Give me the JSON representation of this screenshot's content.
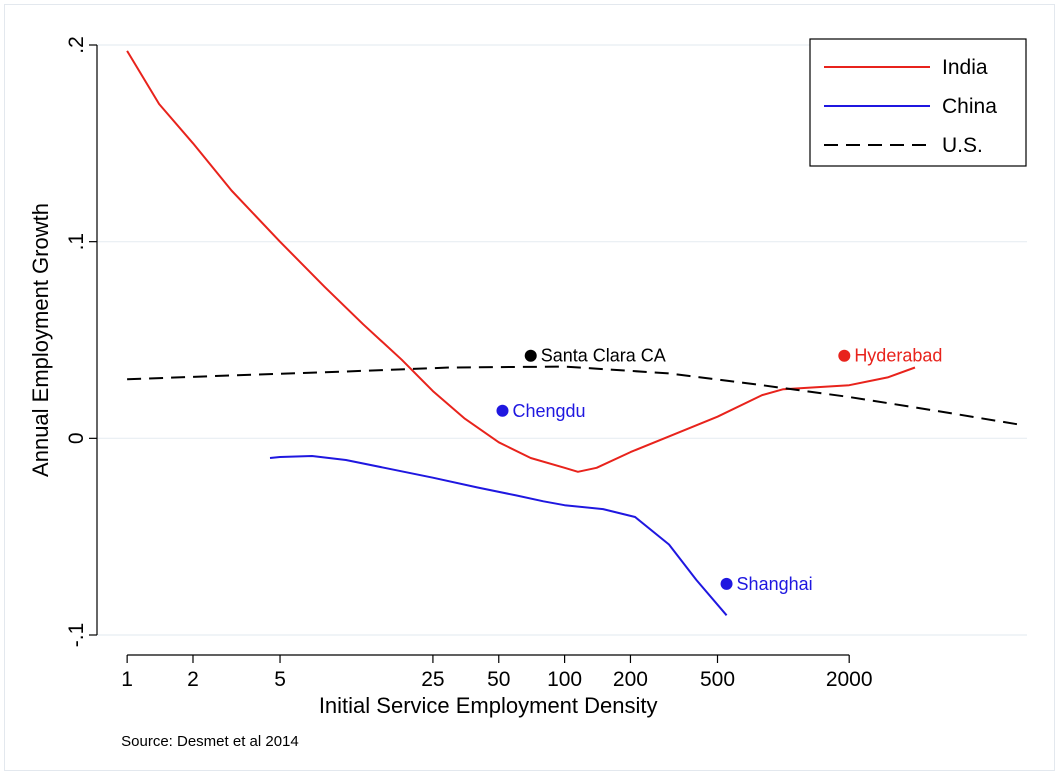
{
  "chart_data": {
    "type": "line",
    "title": "",
    "xlabel": "Initial Service Employment Density",
    "ylabel": "Annual Employment Growth",
    "x_scale": "log",
    "xlim": [
      0.88,
      13000
    ],
    "ylim": [
      -0.1,
      0.2
    ],
    "x_ticks": [
      {
        "value": 1,
        "label": "1"
      },
      {
        "value": 2,
        "label": "2"
      },
      {
        "value": 5,
        "label": "5"
      },
      {
        "value": 25,
        "label": "25"
      },
      {
        "value": 50,
        "label": "50"
      },
      {
        "value": 100,
        "label": "100"
      },
      {
        "value": 200,
        "label": "200"
      },
      {
        "value": 500,
        "label": "500"
      },
      {
        "value": 2000,
        "label": "2000"
      }
    ],
    "y_ticks": [
      {
        "value": -0.1,
        "label": "-.1"
      },
      {
        "value": 0,
        "label": "0"
      },
      {
        "value": 0.1,
        "label": ".1"
      },
      {
        "value": 0.2,
        "label": ".2"
      }
    ],
    "grid": "horizontal",
    "legend_position": "top-right",
    "series": [
      {
        "name": "India",
        "color": "#e8231c",
        "dash": "solid",
        "points": [
          [
            1,
            0.197
          ],
          [
            1.4,
            0.17
          ],
          [
            2,
            0.15
          ],
          [
            3,
            0.126
          ],
          [
            5,
            0.1
          ],
          [
            8,
            0.077
          ],
          [
            12,
            0.058
          ],
          [
            18,
            0.04
          ],
          [
            25,
            0.024
          ],
          [
            35,
            0.01
          ],
          [
            50,
            -0.002
          ],
          [
            70,
            -0.01
          ],
          [
            100,
            -0.015
          ],
          [
            115,
            -0.017
          ],
          [
            140,
            -0.015
          ],
          [
            200,
            -0.007
          ],
          [
            300,
            0.001
          ],
          [
            500,
            0.011
          ],
          [
            800,
            0.022
          ],
          [
            1000,
            0.025
          ],
          [
            2000,
            0.027
          ],
          [
            3000,
            0.031
          ],
          [
            4000,
            0.036
          ]
        ]
      },
      {
        "name": "China",
        "color": "#1f17e0",
        "dash": "solid",
        "points": [
          [
            4.5,
            -0.01
          ],
          [
            5,
            -0.0095
          ],
          [
            7,
            -0.009
          ],
          [
            10,
            -0.011
          ],
          [
            15,
            -0.015
          ],
          [
            25,
            -0.02
          ],
          [
            40,
            -0.025
          ],
          [
            60,
            -0.029
          ],
          [
            80,
            -0.032
          ],
          [
            100,
            -0.034
          ],
          [
            150,
            -0.036
          ],
          [
            210,
            -0.04
          ],
          [
            300,
            -0.054
          ],
          [
            400,
            -0.072
          ],
          [
            550,
            -0.09
          ]
        ]
      },
      {
        "name": "U.S.",
        "color": "#000000",
        "dash": "dashed",
        "points": [
          [
            1,
            0.03
          ],
          [
            3,
            0.032
          ],
          [
            10,
            0.034
          ],
          [
            30,
            0.036
          ],
          [
            100,
            0.0365
          ],
          [
            300,
            0.033
          ],
          [
            800,
            0.027
          ],
          [
            2000,
            0.021
          ],
          [
            5000,
            0.014
          ],
          [
            12000,
            0.007
          ]
        ]
      }
    ],
    "annotations": [
      {
        "text": "Santa Clara CA",
        "x": 70,
        "y": 0.042,
        "color": "#000000"
      },
      {
        "text": "Hyderabad",
        "x": 1900,
        "y": 0.042,
        "color": "#e8231c"
      },
      {
        "text": "Chengdu",
        "x": 52,
        "y": 0.014,
        "color": "#1f17e0"
      },
      {
        "text": "Shanghai",
        "x": 550,
        "y": -0.074,
        "color": "#1f17e0"
      }
    ],
    "note": "Source: Desmet et al 2014"
  }
}
